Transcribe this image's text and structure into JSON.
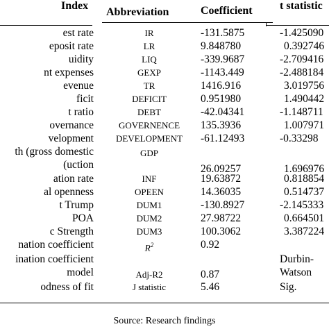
{
  "headers": {
    "index": "Index",
    "abbreviation": "Abbreviation",
    "coefficient": "Coefficient",
    "t_statistic": "t statistic"
  },
  "rows": [
    {
      "index": "est rate",
      "abbr": "IR",
      "coef": "-131.5875",
      "t": "-1.425090"
    },
    {
      "index": "eposit rate",
      "abbr": "LR",
      "coef": "9.848780",
      "t": "0.392746"
    },
    {
      "index": "uidity",
      "abbr": "LIQ",
      "coef": "-339.9687",
      "t": "-2.709416"
    },
    {
      "index": "nt expenses",
      "abbr": "GEXP",
      "coef": "-1143.449",
      "t": "-2.488184"
    },
    {
      "index": "evenue",
      "abbr": "TR",
      "coef": "1416.916",
      "t": "3.019756"
    },
    {
      "index": "ficit",
      "abbr": "DEFICIT",
      "coef": "0.951980",
      "t": "1.490442"
    },
    {
      "index": "t ratio",
      "abbr": "DEBT",
      "coef": "-42.04341",
      "t": "-1.148711"
    },
    {
      "index": "overnance",
      "abbr": "GOVERNENCE",
      "coef": "135.3936",
      "t": "1.007971"
    },
    {
      "index": "velopment",
      "abbr": "DEVELOPMENT",
      "coef": "-61.12493",
      "t": "-0.33298"
    },
    {
      "index": "th (gross domestic",
      "index2": "uction)",
      "abbr": "GDP",
      "coef": "26.09257",
      "t": "1.696976"
    },
    {
      "index": "ation rate",
      "abbr": "INF",
      "coef": "19.63872",
      "t": "0.818854"
    },
    {
      "index": "al openness",
      "abbr": "OPEEN",
      "coef": "14.36035",
      "t": "0.514737"
    },
    {
      "index": "t Trump",
      "abbr": "DUM1",
      "coef": "-130.8927",
      "t": "-2.145333"
    },
    {
      "index": "POA",
      "abbr": "DUM2",
      "coef": "27.98722",
      "t": "0.664501"
    },
    {
      "index": "c Strength",
      "abbr": "DUM3",
      "coef": "100.3062",
      "t": "3.387224"
    },
    {
      "index": "nation coefficient",
      "abbr": "R",
      "abbr_sup": "2",
      "coef": "0.92",
      "t": ""
    },
    {
      "index": "ination coefficient",
      "index2": "model",
      "abbr": "Adj-R2",
      "coef": "0.87",
      "t": "Durbin-",
      "t2": "Watson"
    },
    {
      "index": "odness of fit",
      "abbr": "J statistic",
      "coef": "5.46",
      "t": "Sig."
    }
  ],
  "source": "Source: Research findings"
}
